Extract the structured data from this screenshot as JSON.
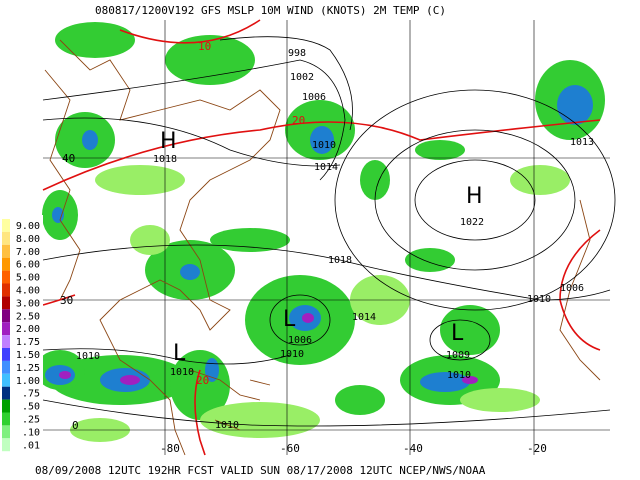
{
  "header": "080817/1200V192 GFS    MSLP 10M WIND (KNOTS) 2M TEMP (C)",
  "footer": "08/09/2008 12UTC 192HR FCST VALID SUN 08/17/2008 12UTC  NCEP/NWS/NOAA",
  "legend": {
    "levels": [
      "9.00",
      "8.00",
      "7.00",
      "6.00",
      "5.00",
      "4.00",
      "3.00",
      "2.50",
      "2.00",
      "1.75",
      "1.50",
      "1.25",
      "1.00",
      ".75",
      ".50",
      ".25",
      ".10",
      ".01"
    ]
  },
  "map": {
    "lon_labels": [
      "-80",
      "-60",
      "-40",
      "-20"
    ],
    "lat_labels": [
      "40",
      "30",
      "0"
    ],
    "pressure_labels": [
      "998",
      "1002",
      "1006",
      "1010",
      "1014",
      "1018",
      "1022",
      "1018",
      "1014",
      "1006",
      "1010",
      "1010",
      "1010",
      "1009",
      "1010",
      "1010",
      "1006",
      "1013",
      "1010"
    ],
    "centers": [
      "H",
      "H",
      "L",
      "L",
      "L"
    ],
    "temp_labels": [
      "10",
      "20",
      "20"
    ]
  }
}
